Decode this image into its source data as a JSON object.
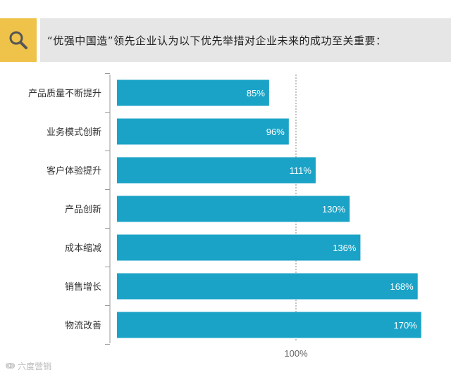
{
  "header": {
    "title": "“优强中国造”领先企业认为以下优先举措对企业未来的成功至关重要："
  },
  "watermark": "六度营销",
  "chart_data": {
    "type": "bar",
    "orientation": "horizontal",
    "categories": [
      "产品质量不断提升",
      "业务模式创新",
      "客户体验提升",
      "产品创新",
      "成本缩减",
      "销售增长",
      "物流改善"
    ],
    "values": [
      85,
      96,
      111,
      130,
      136,
      168,
      170
    ],
    "value_labels": [
      "85%",
      "96%",
      "111%",
      "130%",
      "136%",
      "168%",
      "170%"
    ],
    "reference_line": {
      "value": 100,
      "label": "100%"
    },
    "bar_color": "#1aa3c7"
  }
}
